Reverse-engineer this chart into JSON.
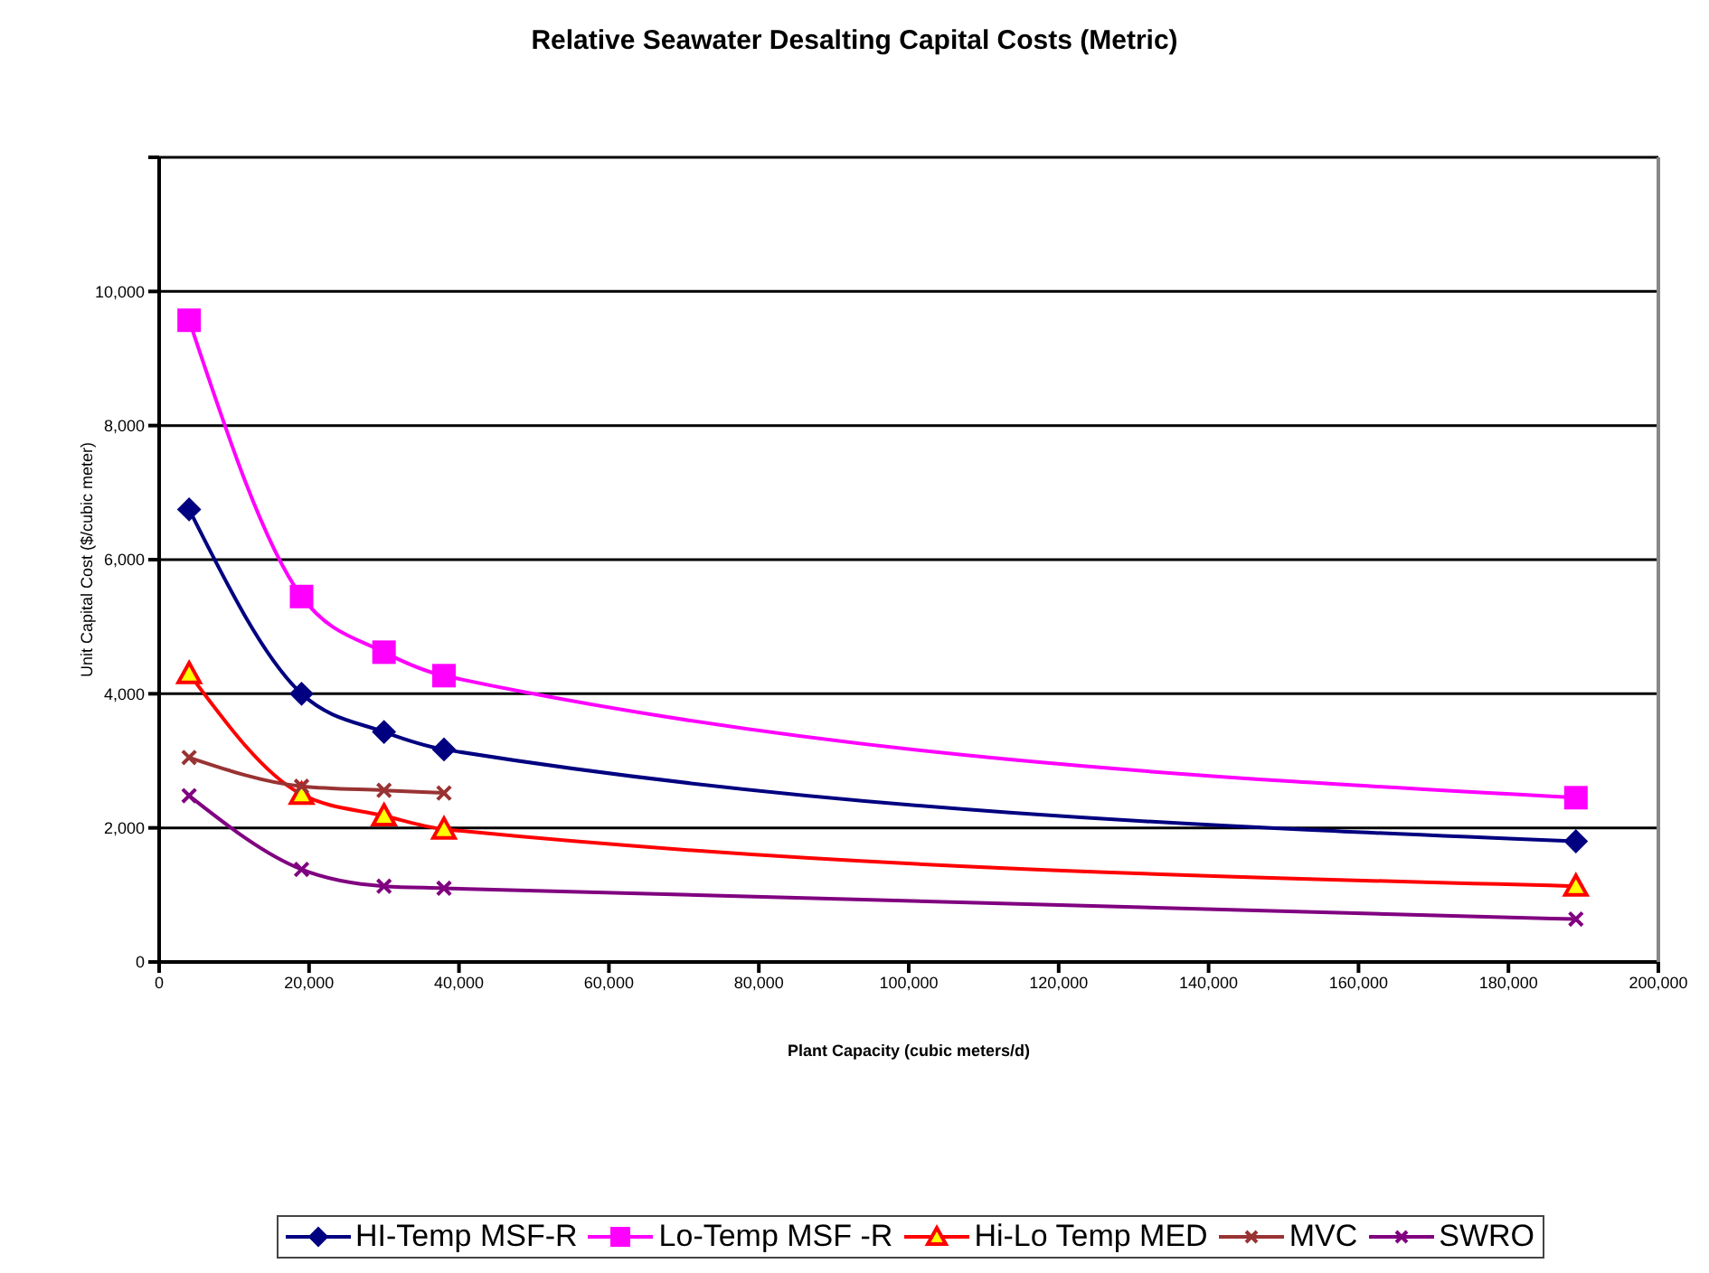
{
  "chart_data": {
    "type": "line",
    "title": "Relative Seawater Desalting Capital Costs (Metric)",
    "xlabel": "Plant Capacity (cubic meters/d)",
    "ylabel": "Unit Capital Cost ($/cubic meter)",
    "xlim": [
      0,
      200000
    ],
    "xticks": [
      {
        "value": 0,
        "label": "0"
      },
      {
        "value": 20000,
        "label": "20,000"
      },
      {
        "value": 40000,
        "label": "40,000"
      },
      {
        "value": 60000,
        "label": "60,000"
      },
      {
        "value": 80000,
        "label": "80,000"
      },
      {
        "value": 100000,
        "label": "100,000"
      },
      {
        "value": 120000,
        "label": "120,000"
      },
      {
        "value": 140000,
        "label": "140,000"
      },
      {
        "value": 160000,
        "label": "160,000"
      },
      {
        "value": 180000,
        "label": "180,000"
      },
      {
        "value": 200000,
        "label": "200,000"
      }
    ],
    "ylim": [
      0,
      12000
    ],
    "yticks": [
      {
        "value": 0,
        "label": "0"
      },
      {
        "value": 2000,
        "label": "2,000"
      },
      {
        "value": 4000,
        "label": "4,000"
      },
      {
        "value": 6000,
        "label": "6,000"
      },
      {
        "value": 8000,
        "label": "8,000"
      },
      {
        "value": 10000,
        "label": "10,000"
      },
      {
        "value": 12000,
        "label": null
      }
    ],
    "grid": "y",
    "legend": "bottom",
    "line_style": "solid",
    "series": [
      {
        "name": "HI-Temp MSF-R",
        "color": "#000080",
        "marker": "diamond",
        "x": [
          4000,
          19000,
          30000,
          38000,
          189000
        ],
        "values": [
          6750,
          4000,
          3430,
          3170,
          1800
        ]
      },
      {
        "name": "Lo-Temp MSF -R",
        "color": "#ff00ff",
        "marker": "square",
        "x": [
          4000,
          19000,
          30000,
          38000,
          189000
        ],
        "values": [
          9570,
          5450,
          4620,
          4270,
          2450
        ]
      },
      {
        "name": "Hi-Lo Temp MED",
        "color": "#ff0000",
        "marker": "triangle",
        "x": [
          4000,
          19000,
          30000,
          38000,
          189000
        ],
        "values": [
          4300,
          2500,
          2180,
          1980,
          1130
        ]
      },
      {
        "name": "MVC",
        "color": "#993333",
        "marker": "cross",
        "x": [
          4000,
          19000,
          30000,
          38000
        ],
        "values": [
          3050,
          2620,
          2560,
          2520
        ]
      },
      {
        "name": "SWRO",
        "color": "#800080",
        "marker": "cross",
        "x": [
          4000,
          19000,
          30000,
          38000,
          189000
        ],
        "values": [
          2480,
          1380,
          1130,
          1100,
          640
        ]
      }
    ]
  }
}
